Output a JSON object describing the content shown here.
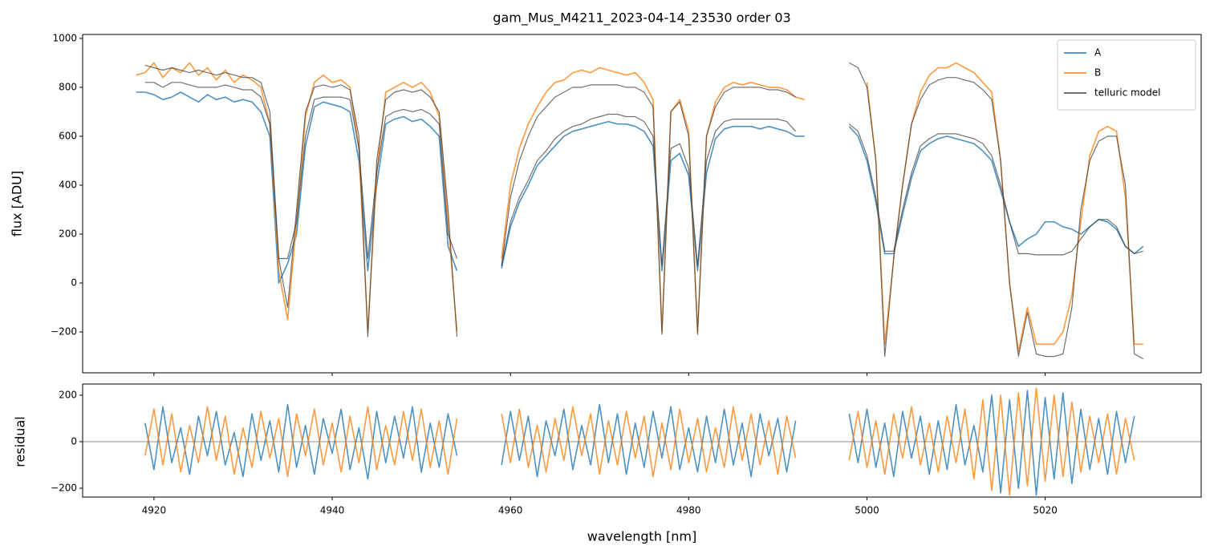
{
  "chart_data": [
    {
      "type": "line",
      "title": "gam_Mus_M4211_2023-04-14_23530  order 03",
      "ylabel": "flux [ADU]",
      "xlim": [
        4912,
        5037.5
      ],
      "ylim": [
        -367,
        1016
      ],
      "yticks": [
        {
          "value": -200,
          "label": "−200"
        },
        0,
        200,
        400,
        600,
        800,
        1000
      ],
      "legend": "upper right",
      "x": [
        4918,
        4919,
        4920,
        4921,
        4922,
        4923,
        4924,
        4925,
        4926,
        4927,
        4928,
        4929,
        4930,
        4931,
        4932,
        4933,
        4934,
        4935,
        4936,
        4937,
        4938,
        4939,
        4940,
        4941,
        4942,
        4943,
        4944,
        4945,
        4946,
        4947,
        4948,
        4949,
        4950,
        4951,
        4952,
        4953,
        4954,
        4955,
        4956,
        4957,
        4958,
        4959,
        4960,
        4961,
        4962,
        4963,
        4964,
        4965,
        4966,
        4967,
        4968,
        4969,
        4970,
        4971,
        4972,
        4973,
        4974,
        4975,
        4976,
        4977,
        4978,
        4979,
        4980,
        4981,
        4982,
        4983,
        4984,
        4985,
        4986,
        4987,
        4988,
        4989,
        4990,
        4991,
        4992,
        4993,
        4994,
        4995,
        4996,
        4997,
        4998,
        4999,
        5000,
        5001,
        5002,
        5003,
        5004,
        5005,
        5006,
        5007,
        5008,
        5009,
        5010,
        5011,
        5012,
        5013,
        5014,
        5015,
        5016,
        5017,
        5018,
        5019,
        5020,
        5021,
        5022,
        5023,
        5024,
        5025,
        5026,
        5027,
        5028,
        5029,
        5030,
        5031
      ],
      "series": [
        {
          "name": "A",
          "color": "#1f77b4",
          "values": [
            780,
            780,
            770,
            750,
            760,
            780,
            760,
            740,
            770,
            750,
            760,
            740,
            750,
            740,
            700,
            600,
            0,
            80,
            200,
            560,
            720,
            740,
            730,
            720,
            700,
            500,
            50,
            400,
            650,
            670,
            680,
            660,
            670,
            640,
            600,
            150,
            50,
            null,
            null,
            null,
            null,
            60,
            230,
            330,
            400,
            480,
            520,
            560,
            600,
            620,
            630,
            640,
            650,
            660,
            650,
            650,
            640,
            620,
            560,
            50,
            500,
            530,
            440,
            50,
            450,
            590,
            630,
            640,
            640,
            640,
            630,
            640,
            630,
            620,
            600,
            600,
            null,
            null,
            null,
            null,
            640,
            600,
            500,
            330,
            120,
            120,
            280,
            430,
            540,
            570,
            590,
            600,
            590,
            580,
            570,
            540,
            500,
            380,
            250,
            150,
            180,
            200,
            250,
            250,
            230,
            220,
            200,
            230,
            260,
            250,
            220,
            150,
            120,
            150
          ]
        },
        {
          "name": "B",
          "color": "#ff7f0e",
          "values": [
            850,
            860,
            900,
            840,
            880,
            860,
            900,
            850,
            880,
            830,
            870,
            820,
            850,
            830,
            800,
            650,
            50,
            -150,
            250,
            680,
            820,
            850,
            820,
            830,
            800,
            550,
            -200,
            450,
            780,
            800,
            820,
            800,
            820,
            780,
            680,
            250,
            -200,
            null,
            null,
            null,
            null,
            100,
            400,
            550,
            650,
            720,
            780,
            820,
            830,
            860,
            870,
            860,
            880,
            870,
            860,
            850,
            860,
            820,
            750,
            -200,
            700,
            750,
            620,
            -200,
            600,
            740,
            800,
            820,
            810,
            820,
            810,
            800,
            800,
            790,
            760,
            750,
            null,
            null,
            null,
            null,
            null,
            null,
            820,
            500,
            -250,
            100,
            400,
            650,
            780,
            850,
            880,
            880,
            900,
            880,
            860,
            820,
            780,
            500,
            0,
            -280,
            -100,
            -250,
            -250,
            -250,
            -200,
            -50,
            250,
            520,
            620,
            640,
            620,
            350,
            -250,
            -250
          ]
        },
        {
          "name": "telluric model",
          "color": "#404040",
          "values": [
            null,
            820,
            820,
            800,
            820,
            820,
            810,
            800,
            800,
            800,
            810,
            800,
            790,
            790,
            760,
            650,
            100,
            100,
            250,
            600,
            750,
            760,
            760,
            760,
            750,
            550,
            100,
            450,
            680,
            700,
            710,
            700,
            710,
            690,
            650,
            200,
            100,
            null,
            null,
            null,
            null,
            70,
            250,
            350,
            420,
            500,
            540,
            590,
            620,
            640,
            650,
            670,
            680,
            690,
            690,
            680,
            680,
            660,
            600,
            70,
            550,
            570,
            470,
            70,
            500,
            620,
            660,
            670,
            670,
            670,
            670,
            670,
            670,
            660,
            620,
            null,
            null,
            null,
            null,
            null,
            650,
            620,
            520,
            350,
            130,
            130,
            300,
            450,
            560,
            590,
            610,
            610,
            610,
            600,
            590,
            570,
            520,
            400,
            250,
            120,
            120,
            115,
            115,
            115,
            115,
            130,
            180,
            230,
            260,
            260,
            230,
            150,
            120,
            130
          ]
        },
        {
          "color": "#404040",
          "values": [
            null,
            890,
            880,
            870,
            880,
            870,
            860,
            870,
            860,
            850,
            860,
            850,
            840,
            840,
            820,
            700,
            100,
            -100,
            300,
            700,
            800,
            810,
            800,
            810,
            790,
            600,
            -220,
            500,
            750,
            780,
            790,
            780,
            790,
            760,
            700,
            300,
            -220,
            null,
            null,
            null,
            null,
            70,
            350,
            500,
            600,
            680,
            720,
            760,
            780,
            800,
            800,
            810,
            810,
            810,
            810,
            800,
            800,
            780,
            720,
            -210,
            700,
            740,
            600,
            -210,
            600,
            720,
            780,
            800,
            800,
            800,
            800,
            790,
            790,
            780,
            760,
            null,
            null,
            null,
            null,
            null,
            900,
            880,
            800,
            500,
            -300,
            100,
            400,
            650,
            750,
            810,
            830,
            840,
            840,
            830,
            820,
            790,
            750,
            500,
            0,
            -300,
            -120,
            -290,
            -300,
            -300,
            -290,
            -100,
            300,
            500,
            580,
            600,
            600,
            400,
            -290,
            -310
          ]
        }
      ]
    },
    {
      "type": "line",
      "ylabel": "residual",
      "xlabel": "wavelength [nm]",
      "xlim": [
        4912,
        5037.5
      ],
      "ylim": [
        -238,
        248
      ],
      "xticks": [
        4920,
        4940,
        4960,
        4980,
        5000,
        5020
      ],
      "yticks": [
        {
          "value": -200,
          "label": "−200"
        },
        0,
        200
      ],
      "hline": 0,
      "x": [
        4918,
        4919,
        4920,
        4921,
        4922,
        4923,
        4924,
        4925,
        4926,
        4927,
        4928,
        4929,
        4930,
        4931,
        4932,
        4933,
        4934,
        4935,
        4936,
        4937,
        4938,
        4939,
        4940,
        4941,
        4942,
        4943,
        4944,
        4945,
        4946,
        4947,
        4948,
        4949,
        4950,
        4951,
        4952,
        4953,
        4954,
        4955,
        4956,
        4957,
        4958,
        4959,
        4960,
        4961,
        4962,
        4963,
        4964,
        4965,
        4966,
        4967,
        4968,
        4969,
        4970,
        4971,
        4972,
        4973,
        4974,
        4975,
        4976,
        4977,
        4978,
        4979,
        4980,
        4981,
        4982,
        4983,
        4984,
        4985,
        4986,
        4987,
        4988,
        4989,
        4990,
        4991,
        4992,
        4993,
        4994,
        4995,
        4996,
        4997,
        4998,
        4999,
        5000,
        5001,
        5002,
        5003,
        5004,
        5005,
        5006,
        5007,
        5008,
        5009,
        5010,
        5011,
        5012,
        5013,
        5014,
        5015,
        5016,
        5017,
        5018,
        5019,
        5020,
        5021,
        5022,
        5023,
        5024,
        5025,
        5026,
        5027,
        5028,
        5029,
        5030,
        5031
      ],
      "series": [
        {
          "color": "#1f77b4",
          "values": [
            null,
            80,
            -120,
            150,
            -90,
            60,
            -140,
            110,
            -60,
            130,
            -100,
            40,
            -150,
            120,
            -80,
            90,
            -130,
            160,
            -110,
            70,
            -140,
            100,
            -50,
            140,
            -120,
            60,
            -160,
            130,
            -90,
            110,
            -70,
            150,
            -130,
            80,
            -110,
            120,
            -60,
            null,
            null,
            null,
            null,
            -100,
            130,
            -80,
            110,
            -150,
            90,
            -60,
            140,
            -120,
            70,
            -100,
            160,
            -90,
            120,
            -140,
            80,
            -110,
            130,
            -70,
            150,
            -120,
            60,
            -130,
            110,
            -90,
            140,
            -100,
            80,
            -150,
            120,
            -60,
            100,
            -130,
            90,
            null,
            null,
            null,
            null,
            null,
            120,
            -90,
            140,
            -110,
            80,
            -150,
            130,
            -70,
            110,
            -140,
            90,
            -120,
            160,
            -100,
            70,
            -130,
            200,
            -220,
            180,
            -200,
            220,
            -230,
            190,
            -160,
            210,
            -180,
            140,
            -120,
            100,
            -140,
            130,
            -90,
            110,
            null
          ]
        },
        {
          "color": "#ff7f0e",
          "values": [
            null,
            -60,
            140,
            -100,
            120,
            -130,
            70,
            -90,
            150,
            -80,
            110,
            -140,
            60,
            -110,
            130,
            -70,
            100,
            -150,
            120,
            -60,
            140,
            -100,
            80,
            -130,
            110,
            -90,
            150,
            -120,
            70,
            -100,
            130,
            -80,
            140,
            -110,
            90,
            -140,
            100,
            null,
            null,
            null,
            null,
            120,
            -90,
            140,
            -110,
            70,
            -130,
            100,
            -80,
            150,
            -60,
            120,
            -140,
            90,
            -100,
            130,
            -70,
            110,
            -150,
            80,
            -120,
            140,
            -90,
            100,
            -130,
            60,
            -110,
            150,
            -80,
            120,
            -100,
            90,
            -140,
            110,
            -70,
            null,
            null,
            null,
            null,
            null,
            -80,
            130,
            -110,
            90,
            -140,
            120,
            -70,
            150,
            -100,
            80,
            -130,
            110,
            -90,
            140,
            -160,
            180,
            -210,
            200,
            -230,
            210,
            -190,
            230,
            -170,
            200,
            -150,
            170,
            -130,
            110,
            -90,
            120,
            -140,
            100,
            -80,
            null
          ]
        }
      ]
    }
  ]
}
